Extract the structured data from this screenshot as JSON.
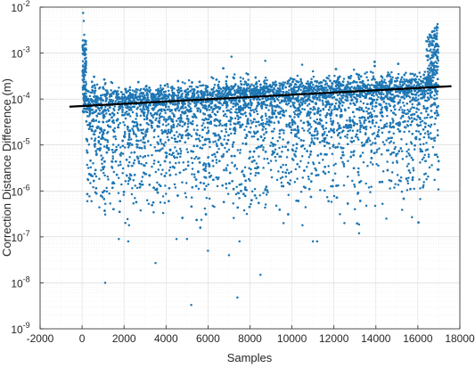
{
  "chart_data": {
    "type": "scatter",
    "title": "",
    "xlabel": "Samples",
    "ylabel": "Correction Distance Difference (m)",
    "xlim": [
      -2000,
      18000
    ],
    "ylim_log10": [
      -9,
      -2
    ],
    "y_scale": "log",
    "grid": "major and minor",
    "x_ticks": [
      -2000,
      0,
      2000,
      4000,
      6000,
      8000,
      10000,
      12000,
      14000,
      16000,
      18000
    ],
    "x_tick_labels": [
      "-2000",
      "0",
      "2000",
      "4000",
      "6000",
      "8000",
      "10000",
      "12000",
      "14000",
      "16000",
      "18000"
    ],
    "y_tick_exponents": [
      -9,
      -8,
      -7,
      -6,
      -5,
      -4,
      -3,
      -2
    ],
    "y_tick_labels": [
      {
        "base": "10",
        "exp": "-9"
      },
      {
        "base": "10",
        "exp": "-8"
      },
      {
        "base": "10",
        "exp": "-7"
      },
      {
        "base": "10",
        "exp": "-6"
      },
      {
        "base": "10",
        "exp": "-5"
      },
      {
        "base": "10",
        "exp": "-4"
      },
      {
        "base": "10",
        "exp": "-3"
      },
      {
        "base": "10",
        "exp": "-2"
      }
    ],
    "series": [
      {
        "kind": "scatter",
        "color": "#1f77b4",
        "x_range": [
          0,
          17000
        ],
        "points": [
          [
            50,
            0.0075
          ],
          [
            80,
            0.005
          ],
          [
            100,
            0.0025
          ],
          [
            120,
            0.0012
          ],
          [
            150,
            0.0006
          ],
          [
            200,
            0.00015
          ],
          [
            300,
            6e-05
          ],
          [
            400,
            3e-05
          ],
          [
            250,
            6e-07
          ],
          [
            450,
            6e-07
          ],
          [
            1100,
            1e-08
          ],
          [
            1750,
            9e-08
          ],
          [
            2200,
            8e-08
          ],
          [
            3500,
            2.7e-08
          ],
          [
            4500,
            9e-08
          ],
          [
            5000,
            9e-08
          ],
          [
            5200,
            3.3e-09
          ],
          [
            6000,
            5e-08
          ],
          [
            7000,
            4e-08
          ],
          [
            7400,
            4.8e-09
          ],
          [
            7500,
            8e-08
          ],
          [
            8500,
            1.5e-08
          ],
          [
            9600,
            2e-07
          ],
          [
            10500,
            1.8e-07
          ],
          [
            11000,
            8e-08
          ],
          [
            11200,
            8e-08
          ],
          [
            12500,
            2e-07
          ],
          [
            13000,
            4e-07
          ],
          [
            13200,
            1.2e-07
          ],
          [
            14500,
            2.5e-07
          ],
          [
            16800,
            0.0035
          ],
          [
            16900,
            0.002
          ],
          [
            16950,
            0.0012
          ],
          [
            16700,
            0.0008
          ]
        ]
      },
      {
        "kind": "trend-line",
        "color": "#000000",
        "x": [
          -600,
          17600
        ],
        "y": [
          6.8e-05,
          0.00019
        ]
      }
    ]
  }
}
